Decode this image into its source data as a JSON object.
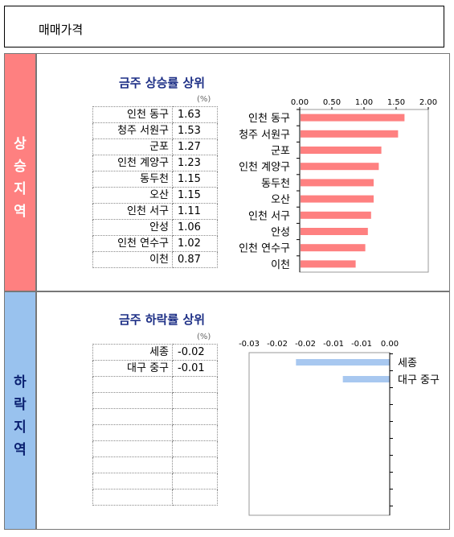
{
  "header": {
    "title": "매매가격"
  },
  "bands": {
    "up_label": "상승지역",
    "down_label": "하락지역"
  },
  "colors": {
    "up_bar": "#fe8080",
    "down_bar": "#a8c8f0",
    "up_band": "#fe8080",
    "down_band": "#99c2ee",
    "title": "#1d2f86"
  },
  "chart_data": [
    {
      "type": "bar",
      "orientation": "horizontal",
      "title": "금주 상승률 상위",
      "unit": "(%)",
      "categories": [
        "인천 동구",
        "청주 서원구",
        "군포",
        "인천 계양구",
        "동두천",
        "오산",
        "인천 서구",
        "안성",
        "인천 연수구",
        "이천"
      ],
      "values": [
        1.63,
        1.53,
        1.27,
        1.23,
        1.15,
        1.15,
        1.11,
        1.06,
        1.02,
        0.87
      ],
      "value_labels": [
        "1.63",
        "1.53",
        "1.27",
        "1.23",
        "1.15",
        "1.15",
        "1.11",
        "1.06",
        "1.02",
        "0.87"
      ],
      "xlim": [
        0,
        2
      ],
      "ticks": [
        "0.00",
        "0.50",
        "1.00",
        "1.50",
        "2.00"
      ],
      "grid": false,
      "legend": false
    },
    {
      "type": "bar",
      "orientation": "horizontal",
      "title": "금주 하락률 상위",
      "unit": "(%)",
      "categories": [
        "세종",
        "대구 중구"
      ],
      "values": [
        -0.02,
        -0.01
      ],
      "value_labels": [
        "-0.02",
        "-0.01"
      ],
      "xlim": [
        -0.03,
        0
      ],
      "ticks": [
        "-0.03",
        "-0.02",
        "-0.02",
        "-0.01",
        "-0.01",
        "0.00"
      ],
      "grid": false,
      "legend": false
    }
  ]
}
